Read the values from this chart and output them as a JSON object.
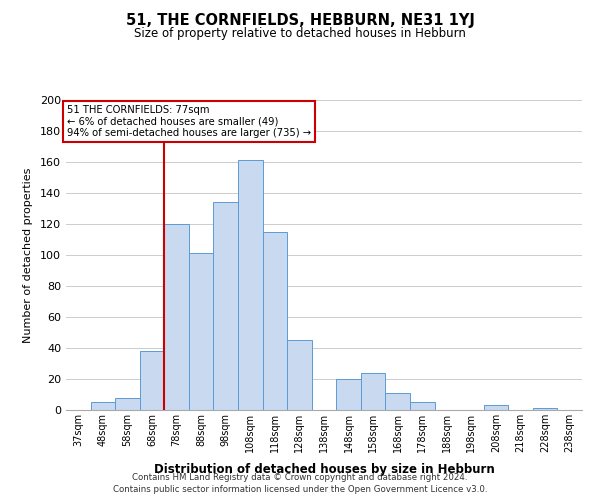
{
  "title": "51, THE CORNFIELDS, HEBBURN, NE31 1YJ",
  "subtitle": "Size of property relative to detached houses in Hebburn",
  "xlabel": "Distribution of detached houses by size in Hebburn",
  "ylabel": "Number of detached properties",
  "footnote1": "Contains HM Land Registry data © Crown copyright and database right 2024.",
  "footnote2": "Contains public sector information licensed under the Open Government Licence v3.0.",
  "bin_labels": [
    "37sqm",
    "48sqm",
    "58sqm",
    "68sqm",
    "78sqm",
    "88sqm",
    "98sqm",
    "108sqm",
    "118sqm",
    "128sqm",
    "138sqm",
    "148sqm",
    "158sqm",
    "168sqm",
    "178sqm",
    "188sqm",
    "198sqm",
    "208sqm",
    "218sqm",
    "228sqm",
    "238sqm"
  ],
  "bar_heights": [
    0,
    5,
    8,
    38,
    120,
    101,
    134,
    161,
    115,
    45,
    0,
    20,
    24,
    11,
    5,
    0,
    0,
    3,
    0,
    1,
    0
  ],
  "bar_color": "#c8d9f0",
  "bar_edge_color": "#5b9bd5",
  "annotation_title": "51 THE CORNFIELDS: 77sqm",
  "annotation_line1": "← 6% of detached houses are smaller (49)",
  "annotation_line2": "94% of semi-detached houses are larger (735) →",
  "vline_color": "#cc0000",
  "annotation_box_edge": "#cc0000",
  "vline_bin_index": 4,
  "ylim": [
    0,
    200
  ],
  "yticks": [
    0,
    20,
    40,
    60,
    80,
    100,
    120,
    140,
    160,
    180,
    200
  ],
  "bg_color": "#ffffff",
  "grid_color": "#cccccc"
}
